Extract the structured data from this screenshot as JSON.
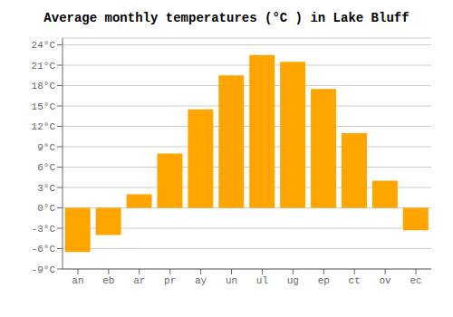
{
  "chart_data": {
    "type": "bar",
    "title": "Average monthly temperatures (°C ) in Lake Bluff",
    "categories": [
      "an",
      "eb",
      "ar",
      "pr",
      "ay",
      "un",
      "ul",
      "ug",
      "ep",
      "ct",
      "ov",
      "ec"
    ],
    "values": [
      -6.5,
      -4.0,
      2.0,
      8.0,
      14.5,
      19.5,
      22.5,
      21.5,
      17.5,
      11.0,
      4.0,
      -3.3
    ],
    "color": "#FFA500",
    "ylim": [
      -9,
      25
    ],
    "yticks": [
      {
        "value": -9,
        "label": "-9°C"
      },
      {
        "value": -6,
        "label": "-6°C"
      },
      {
        "value": -3,
        "label": "-3°C"
      },
      {
        "value": 0,
        "label": "0°C"
      },
      {
        "value": 3,
        "label": "3°C"
      },
      {
        "value": 6,
        "label": "6°C"
      },
      {
        "value": 9,
        "label": "9°C"
      },
      {
        "value": 12,
        "label": "12°C"
      },
      {
        "value": 15,
        "label": "15°C"
      },
      {
        "value": 18,
        "label": "18°C"
      },
      {
        "value": 21,
        "label": "21°C"
      },
      {
        "value": 24,
        "label": "24°C"
      }
    ],
    "grid": true
  }
}
